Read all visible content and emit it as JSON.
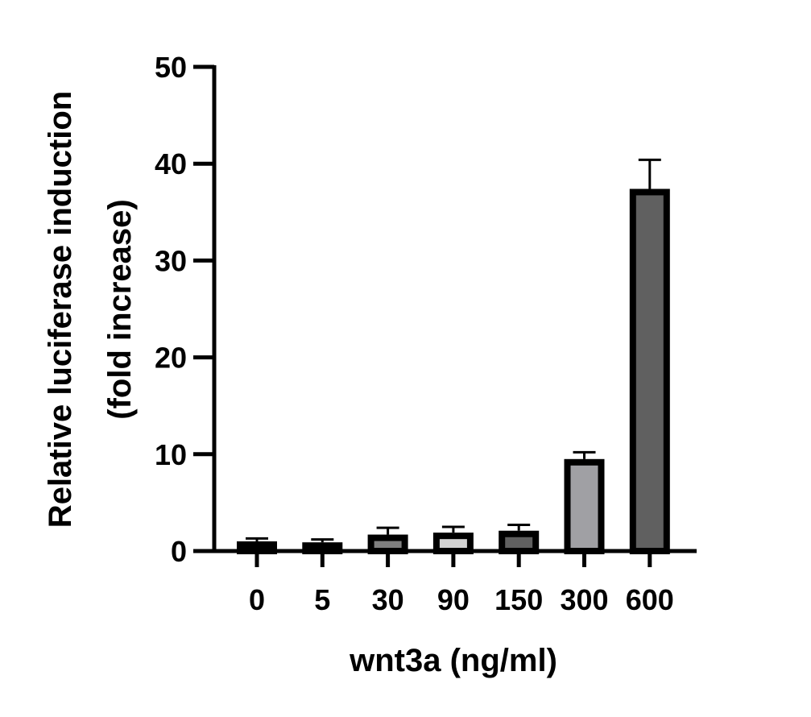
{
  "chart_data": {
    "type": "bar",
    "title": "",
    "xlabel": "wnt3a (ng/ml)",
    "ylabel_lines": [
      "Relative luciferase induction",
      "(fold increase)"
    ],
    "ylabel": "Relative luciferase induction (fold increase)",
    "ylim": [
      0,
      50
    ],
    "yticks": [
      0,
      10,
      20,
      30,
      40,
      50
    ],
    "categories": [
      "0",
      "5",
      "30",
      "90",
      "150",
      "300",
      "600"
    ],
    "values": [
      1.0,
      0.9,
      1.7,
      1.9,
      2.1,
      9.5,
      37.4
    ],
    "error_upper": [
      1.3,
      1.2,
      2.4,
      2.5,
      2.7,
      10.2,
      40.4
    ],
    "bar_fill_colors": [
      "#000000",
      "#000000",
      "#808080",
      "#d3d3d3",
      "#606060",
      "#a0a0a4",
      "#606060"
    ],
    "bar_edge_color": "#000000",
    "grid": false,
    "legend": null
  }
}
